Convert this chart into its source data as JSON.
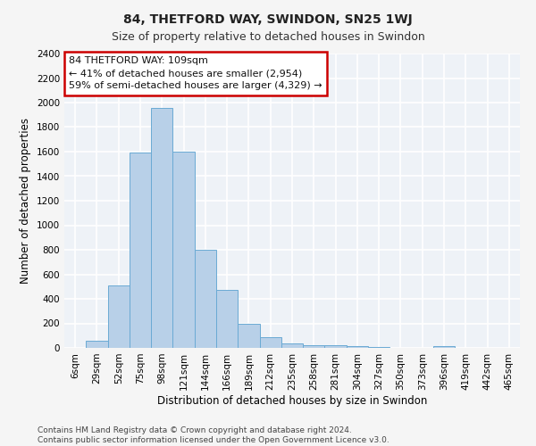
{
  "title": "84, THETFORD WAY, SWINDON, SN25 1WJ",
  "subtitle": "Size of property relative to detached houses in Swindon",
  "xlabel": "Distribution of detached houses by size in Swindon",
  "ylabel": "Number of detached properties",
  "footer_line1": "Contains HM Land Registry data © Crown copyright and database right 2024.",
  "footer_line2": "Contains public sector information licensed under the Open Government Licence v3.0.",
  "annotation_line1": "84 THETFORD WAY: 109sqm",
  "annotation_line2": "← 41% of detached houses are smaller (2,954)",
  "annotation_line3": "59% of semi-detached houses are larger (4,329) →",
  "bar_labels": [
    "6sqm",
    "29sqm",
    "52sqm",
    "75sqm",
    "98sqm",
    "121sqm",
    "144sqm",
    "166sqm",
    "189sqm",
    "212sqm",
    "235sqm",
    "258sqm",
    "281sqm",
    "304sqm",
    "327sqm",
    "350sqm",
    "373sqm",
    "396sqm",
    "419sqm",
    "442sqm",
    "465sqm"
  ],
  "bar_values": [
    0,
    55,
    510,
    1590,
    1960,
    1600,
    800,
    475,
    195,
    90,
    35,
    25,
    20,
    15,
    5,
    0,
    0,
    15,
    0,
    0,
    0
  ],
  "bar_color": "#b8d0e8",
  "bar_edge_color": "#6aaad4",
  "ylim": [
    0,
    2400
  ],
  "yticks": [
    0,
    200,
    400,
    600,
    800,
    1000,
    1200,
    1400,
    1600,
    1800,
    2000,
    2200,
    2400
  ],
  "annotation_box_edge_color": "#cc0000",
  "bg_color": "#eef2f7",
  "grid_color": "#ffffff",
  "fig_bg_color": "#f5f5f5",
  "title_fontsize": 10,
  "subtitle_fontsize": 9,
  "axis_label_fontsize": 8.5,
  "tick_fontsize": 7.5,
  "annotation_fontsize": 8,
  "footer_fontsize": 6.5
}
